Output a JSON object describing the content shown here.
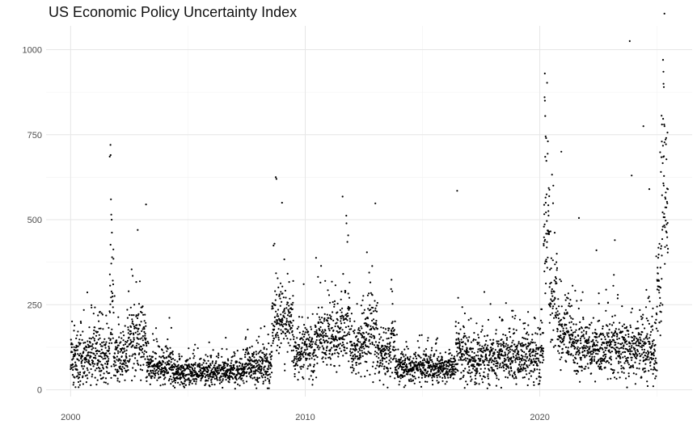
{
  "chart_data": {
    "type": "scatter",
    "title": "US Economic Policy Uncertainty Index",
    "xlabel": "",
    "ylabel": "",
    "x_axis": {
      "type": "date",
      "ticks": [
        "2000",
        "2010",
        "2020"
      ],
      "range": [
        "1998-12-15",
        "2026-06-30"
      ]
    },
    "y_axis": {
      "ticks": [
        0,
        250,
        500,
        750,
        1000
      ],
      "range": [
        -20,
        1070
      ]
    },
    "grid": true,
    "legend": "none",
    "point_color": "#000000",
    "segments": [
      {
        "start": "2000-01-01",
        "end": "2001-09-01",
        "level": 90,
        "spread": 55
      },
      {
        "start": "2001-09-01",
        "end": "2001-11-01",
        "level": 230,
        "spread": 120
      },
      {
        "start": "2001-11-01",
        "end": "2002-06-01",
        "level": 95,
        "spread": 50
      },
      {
        "start": "2002-06-01",
        "end": "2003-04-01",
        "level": 150,
        "spread": 70
      },
      {
        "start": "2003-04-01",
        "end": "2004-06-01",
        "level": 70,
        "spread": 35
      },
      {
        "start": "2004-06-01",
        "end": "2007-06-01",
        "level": 50,
        "spread": 25
      },
      {
        "start": "2007-06-01",
        "end": "2008-08-01",
        "level": 75,
        "spread": 40
      },
      {
        "start": "2008-08-01",
        "end": "2009-07-01",
        "level": 200,
        "spread": 70
      },
      {
        "start": "2009-07-01",
        "end": "2010-06-01",
        "level": 110,
        "spread": 50
      },
      {
        "start": "2010-06-01",
        "end": "2011-07-01",
        "level": 150,
        "spread": 60
      },
      {
        "start": "2011-07-01",
        "end": "2011-12-01",
        "level": 200,
        "spread": 80
      },
      {
        "start": "2011-12-01",
        "end": "2012-06-01",
        "level": 120,
        "spread": 55
      },
      {
        "start": "2012-06-01",
        "end": "2013-02-01",
        "level": 170,
        "spread": 70
      },
      {
        "start": "2013-02-01",
        "end": "2013-09-01",
        "level": 110,
        "spread": 50
      },
      {
        "start": "2013-09-01",
        "end": "2013-11-01",
        "level": 160,
        "spread": 70
      },
      {
        "start": "2013-11-01",
        "end": "2016-06-01",
        "level": 65,
        "spread": 30
      },
      {
        "start": "2016-06-01",
        "end": "2016-12-01",
        "level": 110,
        "spread": 55
      },
      {
        "start": "2016-12-01",
        "end": "2019-12-31",
        "level": 90,
        "spread": 45
      },
      {
        "start": "2020-01-01",
        "end": "2020-03-01",
        "level": 110,
        "spread": 50
      },
      {
        "start": "2020-03-01",
        "end": "2020-06-01",
        "level": 450,
        "spread": 160
      },
      {
        "start": "2020-06-01",
        "end": "2020-10-01",
        "level": 270,
        "spread": 90
      },
      {
        "start": "2020-10-01",
        "end": "2021-06-01",
        "level": 160,
        "spread": 60
      },
      {
        "start": "2021-06-01",
        "end": "2024-10-01",
        "level": 120,
        "spread": 55
      },
      {
        "start": "2024-10-01",
        "end": "2024-12-31",
        "level": 130,
        "spread": 80
      },
      {
        "start": "2025-01-01",
        "end": "2025-03-01",
        "level": 300,
        "spread": 120
      },
      {
        "start": "2025-03-01",
        "end": "2025-06-20",
        "level": 550,
        "spread": 170
      }
    ],
    "notable_points": [
      {
        "x": "2001-09-12",
        "y": 720
      },
      {
        "x": "2001-09-15",
        "y": 690
      },
      {
        "x": "2001-09-20",
        "y": 560
      },
      {
        "x": "2001-09-25",
        "y": 515
      },
      {
        "x": "2001-10-01",
        "y": 500
      },
      {
        "x": "2003-03-20",
        "y": 545
      },
      {
        "x": "2002-11-10",
        "y": 470
      },
      {
        "x": "2008-09-29",
        "y": 625
      },
      {
        "x": "2008-10-10",
        "y": 620
      },
      {
        "x": "2009-01-05",
        "y": 550
      },
      {
        "x": "2011-08-05",
        "y": 568
      },
      {
        "x": "2012-12-28",
        "y": 548
      },
      {
        "x": "2016-06-24",
        "y": 585
      },
      {
        "x": "2020-03-16",
        "y": 860
      },
      {
        "x": "2020-03-20",
        "y": 850
      },
      {
        "x": "2020-03-25",
        "y": 805
      },
      {
        "x": "2020-04-01",
        "y": 745
      },
      {
        "x": "2020-04-08",
        "y": 740
      },
      {
        "x": "2020-12-01",
        "y": 700
      },
      {
        "x": "2021-09-01",
        "y": 505
      },
      {
        "x": "2022-06-01",
        "y": 410
      },
      {
        "x": "2023-03-15",
        "y": 440
      },
      {
        "x": "2023-11-01",
        "y": 1025
      },
      {
        "x": "2023-12-01",
        "y": 630
      },
      {
        "x": "2024-06-01",
        "y": 775
      },
      {
        "x": "2024-09-01",
        "y": 590
      },
      {
        "x": "2025-04-03",
        "y": 970
      },
      {
        "x": "2025-04-09",
        "y": 935
      },
      {
        "x": "2025-04-15",
        "y": 890
      },
      {
        "x": "2025-04-20",
        "y": 780
      },
      {
        "x": "2025-04-25",
        "y": 775
      },
      {
        "x": "2025-03-15",
        "y": 730
      }
    ]
  }
}
